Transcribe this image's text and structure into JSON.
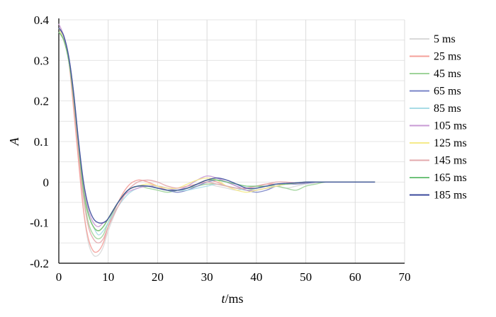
{
  "chart_data": {
    "type": "line",
    "xlabel_italic": "t",
    "xlabel_unit": "/ms",
    "ylabel": "A",
    "xlim": [
      0,
      70
    ],
    "ylim": [
      -0.2,
      0.4
    ],
    "xticks": [
      0,
      10,
      20,
      30,
      40,
      50,
      60,
      70
    ],
    "yticks": [
      {
        "value": 0.4,
        "label": "0.4"
      },
      {
        "value": 0.3,
        "label": "0.3"
      },
      {
        "value": 0.2,
        "label": "0.2"
      },
      {
        "value": 0.1,
        "label": "0.1"
      },
      {
        "value": 0,
        "label": "0"
      },
      {
        "value": -0.1,
        "label": "-0.1"
      },
      {
        "value": -0.2,
        "label": "-0.2"
      }
    ],
    "grid": true,
    "legend_position": "right",
    "series": [
      {
        "name": "5 ms",
        "color": "#d9d9d9",
        "x": [
          0,
          1,
          2,
          3,
          4,
          5,
          6,
          7,
          8,
          9,
          10,
          12,
          14,
          16,
          18,
          20,
          22,
          24,
          26,
          28,
          30,
          32,
          34,
          36,
          38,
          40,
          42,
          44,
          46,
          48,
          50,
          52,
          54,
          56,
          60,
          64
        ],
        "y": [
          0.39,
          0.36,
          0.3,
          0.2,
          0.06,
          -0.07,
          -0.15,
          -0.18,
          -0.18,
          -0.16,
          -0.12,
          -0.06,
          -0.02,
          -0.01,
          -0.005,
          -0.01,
          -0.02,
          -0.025,
          -0.02,
          -0.01,
          -0.005,
          -0.01,
          -0.015,
          -0.02,
          -0.015,
          -0.01,
          -0.005,
          -0.01,
          -0.015,
          -0.01,
          -0.005,
          -0.003,
          0,
          0,
          0,
          0
        ]
      },
      {
        "name": "25 ms",
        "color": "#f4a09a",
        "x": [
          0,
          1,
          2,
          3,
          4,
          5,
          6,
          7,
          8,
          9,
          10,
          12,
          14,
          16,
          18,
          20,
          22,
          24,
          26,
          28,
          30,
          32,
          34,
          36,
          38,
          40,
          42,
          44,
          46,
          48,
          50,
          52,
          54,
          56,
          60,
          64
        ],
        "y": [
          0.38,
          0.36,
          0.3,
          0.18,
          0.05,
          -0.07,
          -0.14,
          -0.17,
          -0.17,
          -0.15,
          -0.11,
          -0.05,
          -0.01,
          0.005,
          0.0,
          -0.01,
          -0.02,
          -0.02,
          -0.015,
          -0.005,
          0.005,
          0.0,
          -0.01,
          -0.015,
          -0.015,
          -0.01,
          -0.005,
          -0.005,
          -0.005,
          -0.003,
          -0.002,
          0,
          0,
          0,
          0,
          0
        ]
      },
      {
        "name": "45 ms",
        "color": "#9fd49a",
        "x": [
          0,
          1,
          2,
          3,
          4,
          5,
          6,
          7,
          8,
          9,
          10,
          12,
          14,
          16,
          18,
          20,
          22,
          24,
          26,
          28,
          30,
          32,
          34,
          36,
          38,
          40,
          42,
          44,
          46,
          48,
          50,
          52,
          54,
          56,
          60,
          64
        ],
        "y": [
          0.37,
          0.35,
          0.3,
          0.2,
          0.08,
          -0.03,
          -0.1,
          -0.13,
          -0.14,
          -0.13,
          -0.1,
          -0.05,
          -0.02,
          -0.01,
          -0.015,
          -0.02,
          -0.025,
          -0.02,
          -0.015,
          -0.01,
          -0.005,
          -0.005,
          -0.01,
          -0.015,
          -0.02,
          -0.015,
          -0.01,
          -0.01,
          -0.015,
          -0.02,
          -0.01,
          -0.005,
          0,
          0,
          0,
          0
        ]
      },
      {
        "name": "65 ms",
        "color": "#7a85c8",
        "x": [
          0,
          1,
          2,
          3,
          4,
          5,
          6,
          7,
          8,
          9,
          10,
          12,
          14,
          16,
          18,
          20,
          22,
          24,
          26,
          28,
          30,
          32,
          34,
          36,
          38,
          40,
          42,
          44,
          46,
          48,
          50,
          52,
          54,
          56,
          60,
          64
        ],
        "y": [
          0.38,
          0.36,
          0.3,
          0.21,
          0.09,
          -0.02,
          -0.08,
          -0.11,
          -0.12,
          -0.11,
          -0.09,
          -0.05,
          -0.02,
          -0.01,
          -0.01,
          -0.015,
          -0.02,
          -0.025,
          -0.02,
          -0.01,
          0.0,
          0.005,
          0.0,
          -0.01,
          -0.02,
          -0.025,
          -0.02,
          -0.01,
          -0.005,
          -0.005,
          -0.003,
          0,
          0,
          0,
          0,
          0
        ]
      },
      {
        "name": "85 ms",
        "color": "#a8dce6",
        "x": [
          0,
          1,
          2,
          3,
          4,
          5,
          6,
          7,
          8,
          9,
          10,
          12,
          14,
          16,
          18,
          20,
          22,
          24,
          26,
          28,
          30,
          32,
          34,
          36,
          38,
          40,
          42,
          44,
          46,
          48,
          50,
          52,
          54,
          56,
          60,
          64
        ],
        "y": [
          0.38,
          0.35,
          0.3,
          0.21,
          0.09,
          -0.02,
          -0.08,
          -0.11,
          -0.13,
          -0.12,
          -0.1,
          -0.06,
          -0.03,
          -0.015,
          -0.01,
          -0.01,
          -0.015,
          -0.02,
          -0.02,
          -0.015,
          -0.01,
          -0.005,
          -0.01,
          -0.015,
          -0.02,
          -0.02,
          -0.015,
          -0.01,
          -0.005,
          -0.003,
          0,
          0,
          0,
          0,
          0,
          0
        ]
      },
      {
        "name": "105 ms",
        "color": "#c89ad4",
        "x": [
          0,
          1,
          2,
          3,
          4,
          5,
          6,
          7,
          8,
          9,
          10,
          12,
          14,
          16,
          18,
          20,
          22,
          24,
          26,
          28,
          30,
          32,
          34,
          36,
          38,
          40,
          42,
          44,
          46,
          48,
          50,
          52,
          54,
          56,
          60,
          64
        ],
        "y": [
          0.39,
          0.36,
          0.31,
          0.22,
          0.1,
          -0.01,
          -0.07,
          -0.1,
          -0.11,
          -0.1,
          -0.09,
          -0.05,
          -0.025,
          -0.015,
          -0.01,
          -0.01,
          -0.015,
          -0.02,
          -0.01,
          0.005,
          0.015,
          0.01,
          0.0,
          -0.01,
          -0.02,
          -0.02,
          -0.015,
          -0.01,
          -0.005,
          -0.003,
          0,
          0,
          0,
          0,
          0,
          0
        ]
      },
      {
        "name": "125 ms",
        "color": "#f5ea8a",
        "x": [
          0,
          1,
          2,
          3,
          4,
          5,
          6,
          7,
          8,
          9,
          10,
          12,
          14,
          16,
          18,
          20,
          22,
          24,
          26,
          28,
          30,
          32,
          34,
          36,
          38,
          40,
          42,
          44,
          46,
          48,
          50,
          52,
          54,
          56,
          60,
          64
        ],
        "y": [
          0.38,
          0.35,
          0.3,
          0.21,
          0.08,
          -0.02,
          -0.08,
          -0.11,
          -0.12,
          -0.11,
          -0.09,
          -0.05,
          -0.02,
          -0.01,
          -0.005,
          -0.01,
          -0.015,
          -0.015,
          -0.005,
          0.005,
          0.01,
          0.005,
          -0.01,
          -0.02,
          -0.025,
          -0.02,
          -0.015,
          -0.01,
          -0.005,
          -0.003,
          0,
          0,
          0,
          0,
          0,
          0
        ]
      },
      {
        "name": "145 ms",
        "color": "#e3a9ad",
        "x": [
          0,
          1,
          2,
          3,
          4,
          5,
          6,
          7,
          8,
          9,
          10,
          12,
          14,
          16,
          18,
          20,
          22,
          24,
          26,
          28,
          30,
          32,
          34,
          36,
          38,
          40,
          42,
          44,
          46,
          48,
          50,
          52,
          54,
          56,
          60,
          64
        ],
        "y": [
          0.37,
          0.35,
          0.3,
          0.2,
          0.07,
          -0.04,
          -0.11,
          -0.14,
          -0.15,
          -0.14,
          -0.11,
          -0.06,
          -0.02,
          0.0,
          0.005,
          0.0,
          -0.01,
          -0.015,
          -0.01,
          -0.005,
          0.0,
          -0.005,
          -0.01,
          -0.015,
          -0.015,
          -0.01,
          -0.005,
          0.0,
          0.0,
          -0.002,
          0,
          0,
          0,
          0,
          0,
          0
        ]
      },
      {
        "name": "165 ms",
        "color": "#6fc27a",
        "x": [
          0,
          1,
          2,
          3,
          4,
          5,
          6,
          7,
          8,
          9,
          10,
          12,
          14,
          16,
          18,
          20,
          22,
          24,
          26,
          28,
          30,
          32,
          34,
          36,
          38,
          40,
          42,
          44,
          46,
          48,
          50,
          52,
          54,
          56,
          60,
          64
        ],
        "y": [
          0.37,
          0.35,
          0.3,
          0.21,
          0.09,
          -0.02,
          -0.08,
          -0.11,
          -0.12,
          -0.11,
          -0.09,
          -0.05,
          -0.02,
          -0.01,
          -0.01,
          -0.015,
          -0.02,
          -0.02,
          -0.015,
          -0.005,
          0.005,
          0.005,
          0.0,
          -0.005,
          -0.01,
          -0.01,
          -0.01,
          -0.005,
          -0.005,
          -0.002,
          0,
          0,
          0,
          0,
          0,
          0
        ]
      },
      {
        "name": "185 ms",
        "color": "#3b4a9c",
        "x": [
          0,
          1,
          2,
          3,
          4,
          5,
          6,
          7,
          8,
          9,
          10,
          12,
          14,
          16,
          18,
          20,
          22,
          24,
          26,
          28,
          30,
          32,
          34,
          36,
          38,
          40,
          42,
          44,
          46,
          48,
          50,
          52,
          54,
          56,
          60,
          64
        ],
        "y": [
          0.38,
          0.36,
          0.31,
          0.22,
          0.1,
          0.0,
          -0.06,
          -0.09,
          -0.1,
          -0.1,
          -0.09,
          -0.05,
          -0.02,
          -0.01,
          -0.01,
          -0.015,
          -0.02,
          -0.02,
          -0.015,
          -0.005,
          0.005,
          0.01,
          0.005,
          -0.005,
          -0.015,
          -0.015,
          -0.01,
          -0.005,
          -0.003,
          -0.002,
          0,
          0,
          0,
          0,
          0,
          0
        ]
      }
    ]
  }
}
